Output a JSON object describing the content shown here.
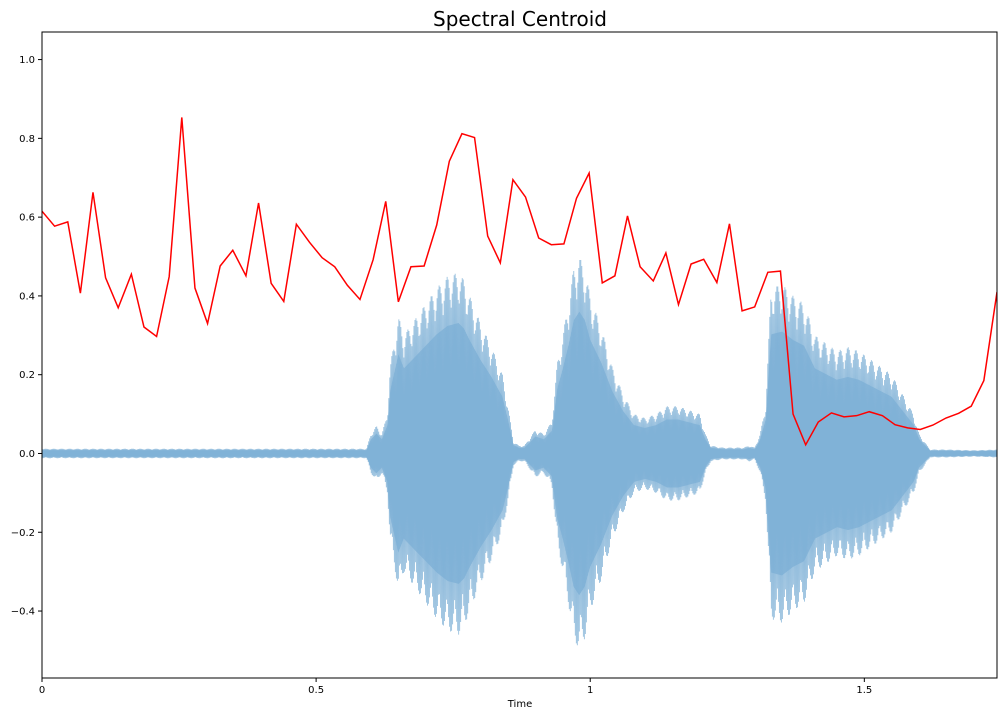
{
  "chart_data": {
    "type": "line",
    "title": "Spectral Centroid",
    "xlabel": "Time",
    "ylabel": "",
    "xlim": [
      0,
      1.742
    ],
    "ylim": [
      -0.57,
      1.07
    ],
    "xticks": [
      0,
      0.5,
      1,
      1.5
    ],
    "xtick_labels": [
      "0",
      "0.5",
      "1",
      "1.5"
    ],
    "yticks": [
      -0.4,
      -0.2,
      0.0,
      0.2,
      0.4,
      0.6,
      0.8,
      1.0
    ],
    "ytick_labels": [
      "−0.4",
      "−0.2",
      "0.0",
      "0.2",
      "0.4",
      "0.6",
      "0.8",
      "1.0"
    ],
    "grid": false,
    "colors": {
      "centroid": "#ff0000",
      "waveform_fill": "#a3c5e0",
      "waveform_line": "#7aaed5"
    },
    "series": [
      {
        "kind": "line",
        "x": [
          0,
          0.023,
          0.047,
          0.07,
          0.093,
          0.116,
          0.139,
          0.163,
          0.186,
          0.209,
          0.232,
          0.255,
          0.279,
          0.302,
          0.325,
          0.348,
          0.372,
          0.395,
          0.418,
          0.441,
          0.464,
          0.488,
          0.511,
          0.534,
          0.557,
          0.58,
          0.604,
          0.627,
          0.65,
          0.673,
          0.697,
          0.72,
          0.743,
          0.766,
          0.789,
          0.813,
          0.836,
          0.859,
          0.882,
          0.906,
          0.929,
          0.952,
          0.975,
          0.998,
          1.022,
          1.045,
          1.068,
          1.091,
          1.115,
          1.138,
          1.161,
          1.184,
          1.207,
          1.231,
          1.254,
          1.277,
          1.3,
          1.324,
          1.347,
          1.37,
          1.393,
          1.416,
          1.44,
          1.463,
          1.486,
          1.509,
          1.533,
          1.556,
          1.579,
          1.602,
          1.625,
          1.649,
          1.672,
          1.695,
          1.718,
          1.742
        ],
        "y": [
          0.615,
          0.577,
          0.588,
          0.407,
          0.663,
          0.446,
          0.37,
          0.455,
          0.321,
          0.297,
          0.449,
          0.853,
          0.42,
          0.33,
          0.476,
          0.516,
          0.451,
          0.636,
          0.432,
          0.386,
          0.582,
          0.536,
          0.497,
          0.474,
          0.427,
          0.391,
          0.492,
          0.64,
          0.385,
          0.474,
          0.476,
          0.58,
          0.742,
          0.812,
          0.802,
          0.552,
          0.484,
          0.695,
          0.651,
          0.547,
          0.53,
          0.532,
          0.648,
          0.712,
          0.433,
          0.451,
          0.603,
          0.474,
          0.438,
          0.509,
          0.378,
          0.481,
          0.493,
          0.434,
          0.583,
          0.362,
          0.372,
          0.46,
          0.463,
          0.1,
          0.022,
          0.08,
          0.103,
          0.093,
          0.096,
          0.106,
          0.096,
          0.073,
          0.065,
          0.061,
          0.072,
          0.09,
          0.102,
          0.12,
          0.185,
          0.41
        ]
      },
      {
        "kind": "waveform",
        "x": [
          0,
          0.05,
          0.1,
          0.15,
          0.2,
          0.25,
          0.3,
          0.35,
          0.4,
          0.45,
          0.5,
          0.55,
          0.58,
          0.592,
          0.6,
          0.61,
          0.62,
          0.63,
          0.635,
          0.65,
          0.66,
          0.68,
          0.7,
          0.72,
          0.74,
          0.76,
          0.77,
          0.78,
          0.8,
          0.82,
          0.84,
          0.85,
          0.86,
          0.87,
          0.88,
          0.9,
          0.915,
          0.93,
          0.94,
          0.95,
          0.96,
          0.97,
          0.98,
          0.99,
          1.0,
          1.02,
          1.04,
          1.06,
          1.08,
          1.1,
          1.12,
          1.14,
          1.16,
          1.18,
          1.2,
          1.21,
          1.22,
          1.24,
          1.26,
          1.28,
          1.29,
          1.3,
          1.31,
          1.32,
          1.33,
          1.35,
          1.37,
          1.39,
          1.41,
          1.43,
          1.45,
          1.47,
          1.49,
          1.51,
          1.53,
          1.55,
          1.57,
          1.59,
          1.6,
          1.62,
          1.65,
          1.7,
          1.742
        ],
        "env": [
          0.012,
          0.012,
          0.012,
          0.012,
          0.012,
          0.012,
          0.012,
          0.012,
          0.012,
          0.012,
          0.012,
          0.012,
          0.012,
          0.012,
          0.05,
          0.07,
          0.05,
          0.1,
          0.22,
          0.35,
          0.3,
          0.34,
          0.38,
          0.42,
          0.45,
          0.46,
          0.44,
          0.4,
          0.33,
          0.27,
          0.2,
          0.12,
          0.03,
          0.02,
          0.02,
          0.06,
          0.05,
          0.08,
          0.23,
          0.3,
          0.38,
          0.47,
          0.5,
          0.47,
          0.4,
          0.32,
          0.22,
          0.15,
          0.1,
          0.09,
          0.1,
          0.12,
          0.12,
          0.11,
          0.1,
          0.05,
          0.02,
          0.015,
          0.015,
          0.015,
          0.02,
          0.015,
          0.05,
          0.12,
          0.42,
          0.43,
          0.4,
          0.38,
          0.3,
          0.28,
          0.26,
          0.27,
          0.26,
          0.24,
          0.22,
          0.2,
          0.15,
          0.1,
          0.05,
          0.01,
          0.01,
          0.008,
          0.01
        ]
      }
    ]
  }
}
